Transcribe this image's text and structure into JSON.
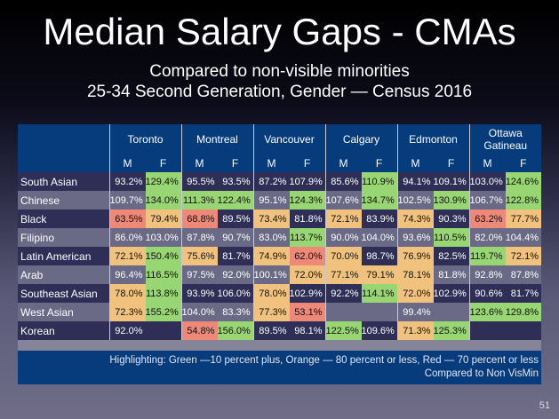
{
  "slide": {
    "title": "Median Salary Gaps - CMAs",
    "subtitle_line1": "Compared to non-visible minorities",
    "subtitle_line2": "25-34 Second Generation, Gender — Census 2016",
    "footnote_line1": "Highlighting: Green —10 percent plus, Orange — 80 percent or less, Red — 70 percent or less",
    "footnote_line2": "Compared to Non VisMin",
    "page_number": "51"
  },
  "colors": {
    "header_blue": "#063c7b",
    "green": "#98d573",
    "orange": "#f0c27e",
    "red": "#ee8878"
  },
  "chart_data": {
    "type": "table",
    "title": "Median Salary Gaps - CMAs",
    "cities": [
      "Toronto",
      "Montreal",
      "Vancouver",
      "Calgary",
      "Edmonton",
      "Ottawa Gatineau"
    ],
    "sex_labels": [
      "M",
      "F"
    ],
    "rows": [
      {
        "group": "South Asian",
        "values": [
          "93.2%",
          "129.4%",
          "95.5%",
          "93.5%",
          "87.2%",
          "107.9%",
          "85.6%",
          "110.9%",
          "94.1%",
          "109.1%",
          "103.0%",
          "124.6%"
        ],
        "highlight": [
          "",
          "g",
          "",
          "",
          "",
          "",
          "",
          "g",
          "",
          "",
          "",
          "g"
        ]
      },
      {
        "group": "Chinese",
        "values": [
          "109.7%",
          "134.0%",
          "111.3%",
          "122.4%",
          "95.1%",
          "124.3%",
          "107.6%",
          "134.7%",
          "102.5%",
          "130.9%",
          "106.7%",
          "122.8%"
        ],
        "highlight": [
          "",
          "g",
          "g",
          "g",
          "",
          "g",
          "",
          "g",
          "",
          "g",
          "",
          "g"
        ]
      },
      {
        "group": "Black",
        "values": [
          "63.5%",
          "79.4%",
          "68.8%",
          "89.5%",
          "73.4%",
          "81.8%",
          "72.1%",
          "83.9%",
          "74.3%",
          "90.3%",
          "63.2%",
          "77.7%"
        ],
        "highlight": [
          "r",
          "o",
          "r",
          "",
          "o",
          "",
          "o",
          "",
          "o",
          "",
          "r",
          "o"
        ]
      },
      {
        "group": "Filipino",
        "values": [
          "86.0%",
          "103.0%",
          "87.8%",
          "90.7%",
          "83.0%",
          "113.7%",
          "90.0%",
          "104.0%",
          "93.6%",
          "110.5%",
          "82.0%",
          "104.4%"
        ],
        "highlight": [
          "",
          "",
          "",
          "",
          "",
          "g",
          "",
          "",
          "",
          "g",
          "",
          ""
        ]
      },
      {
        "group": "Latin American",
        "values": [
          "72.1%",
          "150.4%",
          "75.6%",
          "81.7%",
          "74.9%",
          "62.0%",
          "70.0%",
          "98.7%",
          "76.9%",
          "82.5%",
          "119.7%",
          "72.1%"
        ],
        "highlight": [
          "o",
          "g",
          "o",
          "",
          "o",
          "r",
          "o",
          "",
          "o",
          "",
          "g",
          "o"
        ]
      },
      {
        "group": "Arab",
        "values": [
          "96.4%",
          "116.5%",
          "97.5%",
          "92.0%",
          "100.1%",
          "72.0%",
          "77.1%",
          "79.1%",
          "78.1%",
          "81.8%",
          "92.8%",
          "87.8%"
        ],
        "highlight": [
          "",
          "g",
          "",
          "",
          "",
          "o",
          "o",
          "o",
          "o",
          "",
          "",
          ""
        ]
      },
      {
        "group": "Southeast Asian",
        "values": [
          "78.0%",
          "113.8%",
          "93.9%",
          "106.0%",
          "78.0%",
          "102.9%",
          "92.2%",
          "114.1%",
          "72.0%",
          "102.9%",
          "90.6%",
          "81.7%"
        ],
        "highlight": [
          "o",
          "g",
          "",
          "",
          "o",
          "",
          "",
          "g",
          "o",
          "",
          "",
          ""
        ]
      },
      {
        "group": "West Asian",
        "values": [
          "72.3%",
          "155.2%",
          "104.0%",
          "83.3%",
          "77.3%",
          "53.1%",
          "",
          "",
          "99.4%",
          "",
          "123.6%",
          "129.8%"
        ],
        "highlight": [
          "o",
          "g",
          "",
          "",
          "o",
          "r",
          "",
          "",
          "",
          "",
          "g",
          "g"
        ]
      },
      {
        "group": "Korean",
        "values": [
          "92.0%",
          "",
          "54.8%",
          "156.0%",
          "89.5%",
          "98.1%",
          "122.5%",
          "109.6%",
          "71.3%",
          "125.3%",
          "",
          ""
        ],
        "highlight": [
          "",
          "",
          "r",
          "g",
          "",
          "",
          "g",
          "",
          "o",
          "g",
          "",
          ""
        ]
      }
    ],
    "legend": {
      "green": "10 percent plus",
      "orange": "80 percent or less",
      "red": "70 percent or less"
    }
  }
}
